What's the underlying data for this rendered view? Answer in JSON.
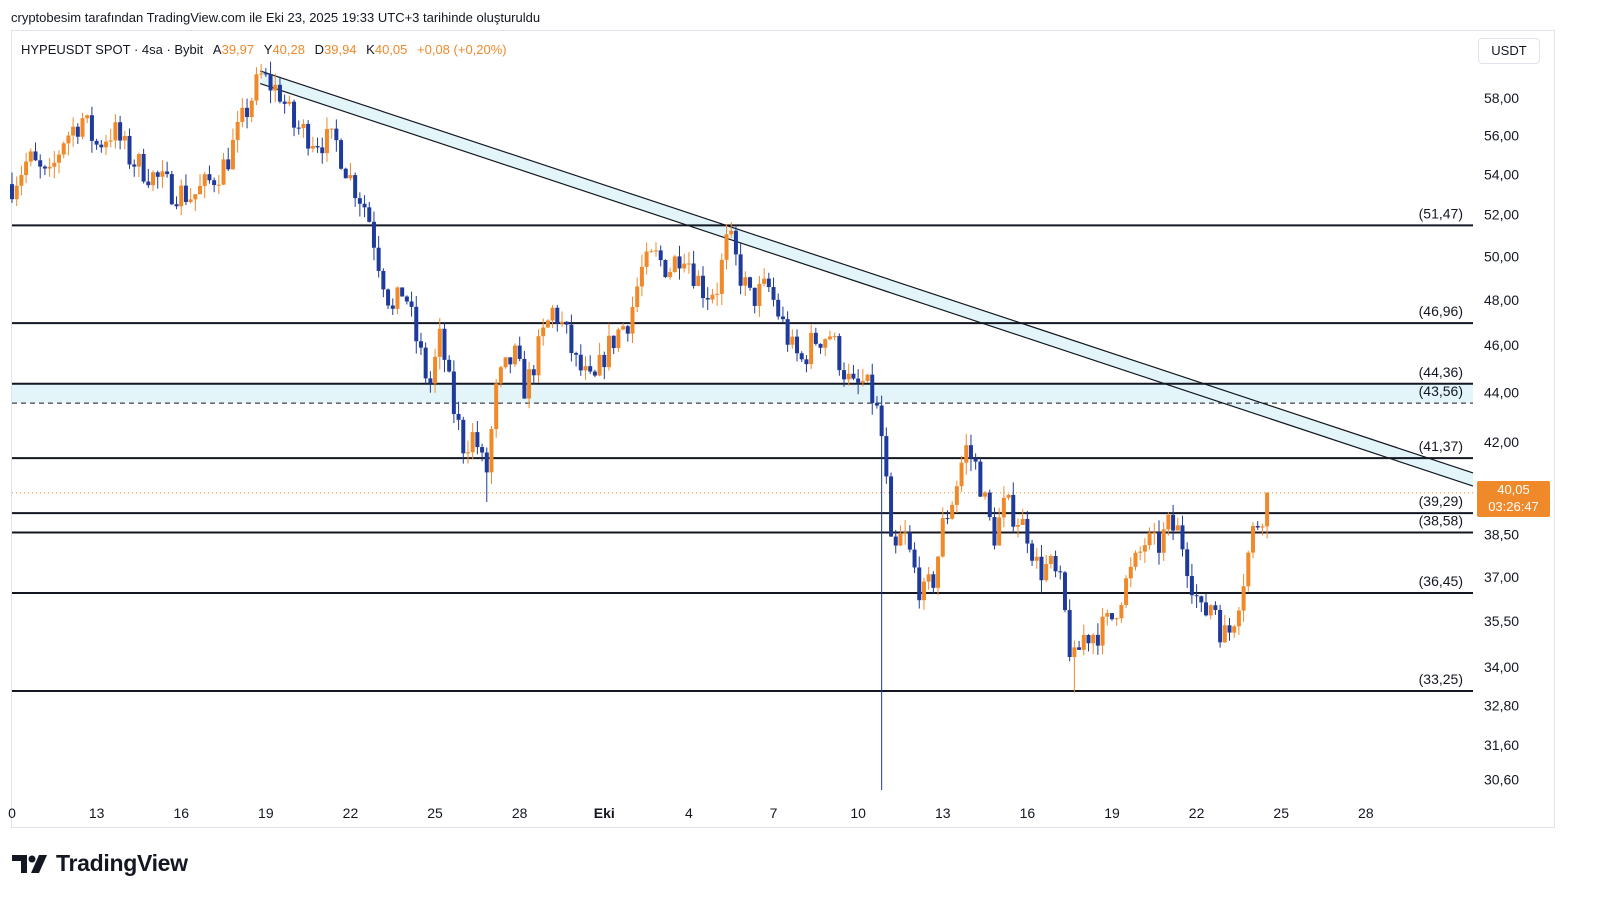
{
  "header": {
    "caption": "cryptobesim tarafından TradingView.com ile Eki 23, 2025 19:33 UTC+3 tarihinde oluşturuldu"
  },
  "legend": {
    "symbol": "HYPEUSDT SPOT · 4sa · Bybit",
    "open_label": "A",
    "open": "39,97",
    "high_label": "Y",
    "high": "40,28",
    "low_label": "D",
    "low": "39,94",
    "close_label": "K",
    "close": "40,05",
    "change": "+0,08 (+0,20%)"
  },
  "axis": {
    "currency": "USDT"
  },
  "last_price": {
    "price": "40,05",
    "countdown": "03:26:47"
  },
  "branding": {
    "name": "TradingView"
  },
  "colors": {
    "up": "#f0892a",
    "down": "#1e3a9b",
    "zone_fill": "#e3f5f8",
    "line": "#131722",
    "price_line": "#f0892a"
  },
  "chart_data": {
    "type": "candlestick",
    "y_scale": "log",
    "ylim": [
      30.1,
      60.0
    ],
    "y_ticks": [
      "58,00",
      "56,00",
      "54,00",
      "52,00",
      "50,00",
      "48,00",
      "46,00",
      "44,00",
      "42,00",
      "38,50",
      "37,00",
      "35,50",
      "34,00",
      "32,80",
      "31,60",
      "30,60"
    ],
    "y_tick_values": [
      58,
      56,
      54,
      52,
      50,
      48,
      46,
      44,
      42,
      38.5,
      37,
      35.5,
      34,
      32.8,
      31.6,
      30.6
    ],
    "x_ticks": [
      "0",
      "13",
      "16",
      "19",
      "22",
      "25",
      "28",
      "Eki",
      "4",
      "7",
      "10",
      "13",
      "16",
      "19",
      "22",
      "25",
      "28"
    ],
    "x_tick_days": [
      10,
      13,
      16,
      19,
      22,
      25,
      28,
      31,
      34,
      37,
      40,
      43,
      46,
      49,
      52,
      55,
      58
    ],
    "x_range_days": [
      10,
      61.8
    ],
    "levels": [
      {
        "label": "(51,47)",
        "value": 51.47
      },
      {
        "label": "(46,96)",
        "value": 46.96
      },
      {
        "label": "(44,36)",
        "value": 44.36
      },
      {
        "label": "(43,56)",
        "value": 43.56
      },
      {
        "label": "(41,37)",
        "value": 41.37
      },
      {
        "label": "(39,29)",
        "value": 39.29
      },
      {
        "label": "(38,58)",
        "value": 38.58
      },
      {
        "label": "(36,45)",
        "value": 36.45
      },
      {
        "label": "(33,25)",
        "value": 33.25
      }
    ],
    "zone": {
      "high": 44.36,
      "low": 43.56
    },
    "trend_channel": {
      "upper": [
        [
          18.8,
          59.5
        ],
        [
          61.8,
          40.8
        ]
      ],
      "lower": [
        [
          18.8,
          58.8
        ],
        [
          61.8,
          40.3
        ]
      ]
    },
    "current_price": 40.05,
    "anchors": [
      [
        10.0,
        53.5
      ],
      [
        10.6,
        54.8
      ],
      [
        11.3,
        53.6
      ],
      [
        11.8,
        55.8
      ],
      [
        12.5,
        56.9
      ],
      [
        13.0,
        55.5
      ],
      [
        13.6,
        56.3
      ],
      [
        14.2,
        54.8
      ],
      [
        15.0,
        53.9
      ],
      [
        15.7,
        53.2
      ],
      [
        16.4,
        52.9
      ],
      [
        17.0,
        53.6
      ],
      [
        17.6,
        54.6
      ],
      [
        18.1,
        56.5
      ],
      [
        18.8,
        59.2
      ],
      [
        19.5,
        58.3
      ],
      [
        20.0,
        56.5
      ],
      [
        20.8,
        55.8
      ],
      [
        21.5,
        55.6
      ],
      [
        22.0,
        53.8
      ],
      [
        22.6,
        52.2
      ],
      [
        23.0,
        49.8
      ],
      [
        23.5,
        47.4
      ],
      [
        23.9,
        48.6
      ],
      [
        24.3,
        46.4
      ],
      [
        24.8,
        44.2
      ],
      [
        25.2,
        46.4
      ],
      [
        25.6,
        43.6
      ],
      [
        26.0,
        41.9
      ],
      [
        26.4,
        42.3
      ],
      [
        26.8,
        40.6
      ],
      [
        27.2,
        44.3
      ],
      [
        27.8,
        45.6
      ],
      [
        28.2,
        44.1
      ],
      [
        28.8,
        46.3
      ],
      [
        29.2,
        47.6
      ],
      [
        29.6,
        46.6
      ],
      [
        30.0,
        45.2
      ],
      [
        30.6,
        44.2
      ],
      [
        31.0,
        45.6
      ],
      [
        31.5,
        46.6
      ],
      [
        31.9,
        47.2
      ],
      [
        32.3,
        49.3
      ],
      [
        32.8,
        50.0
      ],
      [
        33.3,
        49.4
      ],
      [
        33.8,
        50.4
      ],
      [
        34.2,
        49.2
      ],
      [
        34.6,
        48.3
      ],
      [
        35.0,
        48.6
      ],
      [
        35.4,
        51.0
      ],
      [
        35.8,
        49.2
      ],
      [
        36.2,
        48.0
      ],
      [
        36.8,
        48.6
      ],
      [
        37.2,
        47.3
      ],
      [
        37.7,
        45.7
      ],
      [
        38.0,
        45.3
      ],
      [
        38.4,
        46.2
      ],
      [
        39.0,
        46.5
      ],
      [
        39.4,
        45.2
      ],
      [
        39.8,
        44.1
      ],
      [
        40.2,
        44.4
      ],
      [
        40.6,
        43.6
      ],
      [
        40.9,
        41.8
      ],
      [
        41.2,
        37.5
      ],
      [
        41.6,
        38.6
      ],
      [
        42.0,
        37.2
      ],
      [
        42.3,
        36.3
      ],
      [
        42.7,
        37.0
      ],
      [
        43.0,
        38.8
      ],
      [
        43.4,
        40.0
      ],
      [
        43.8,
        41.8
      ],
      [
        44.2,
        41.0
      ],
      [
        44.8,
        38.4
      ],
      [
        45.2,
        39.6
      ],
      [
        45.6,
        39.2
      ],
      [
        46.0,
        38.6
      ],
      [
        46.4,
        37.2
      ],
      [
        46.8,
        37.4
      ],
      [
        47.2,
        36.6
      ],
      [
        47.6,
        34.0
      ],
      [
        48.0,
        35.0
      ],
      [
        48.6,
        35.2
      ],
      [
        49.0,
        35.6
      ],
      [
        49.4,
        36.6
      ],
      [
        49.8,
        37.4
      ],
      [
        50.2,
        38.3
      ],
      [
        50.6,
        38.0
      ],
      [
        51.0,
        38.8
      ],
      [
        51.4,
        38.6
      ],
      [
        51.8,
        37.0
      ],
      [
        52.2,
        35.6
      ],
      [
        52.6,
        36.3
      ],
      [
        52.9,
        35.0
      ],
      [
        53.2,
        35.2
      ],
      [
        53.6,
        36.7
      ],
      [
        54.0,
        38.6
      ],
      [
        54.4,
        39.5
      ],
      [
        54.6,
        40.05
      ]
    ]
  }
}
